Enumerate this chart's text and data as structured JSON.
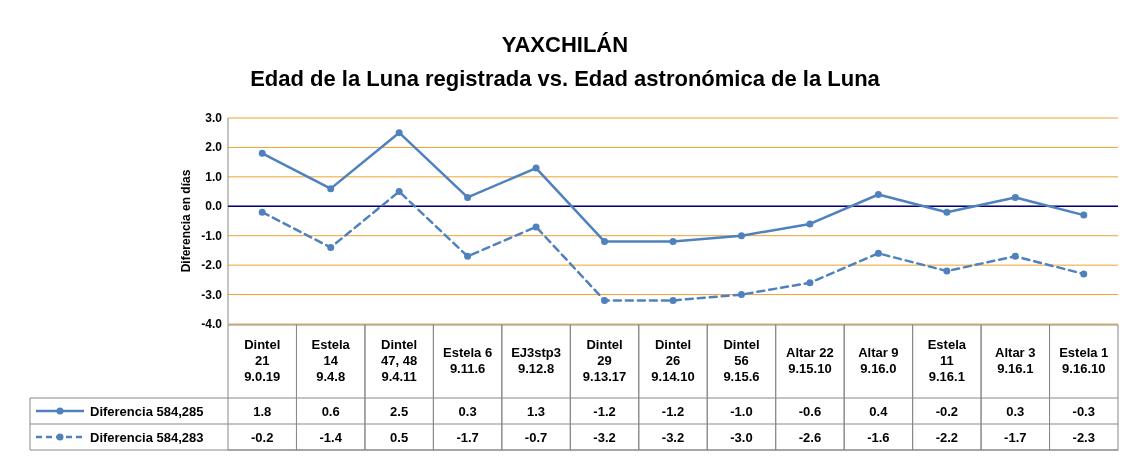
{
  "chart_data": {
    "type": "line",
    "title": "YAXCHILÁN",
    "subtitle": "Edad de la Luna registrada vs. Edad astronómica de la Luna",
    "ylabel": "Diferencia en días",
    "categories": [
      "Dintel\n21\n9.0.19",
      "Estela\n14\n9.4.8",
      "Dintel\n47, 48\n9.4.11",
      "Estela 6\n9.11.6",
      "EJ3stp3\n9.12.8",
      "Dintel\n29\n9.13.17",
      "Dintel\n26\n9.14.10",
      "Dintel\n56\n9.15.6",
      "Altar 22\n9.15.10",
      "Altar 9\n9.16.0",
      "Estela\n11\n9.16.1",
      "Altar 3\n9.16.1",
      "Estela 1\n9.16.10"
    ],
    "series": [
      {
        "name": "Diferencia 584,285",
        "color": "#4f81bd",
        "line_style": "solid",
        "values": [
          1.8,
          0.6,
          2.5,
          0.3,
          1.3,
          -1.2,
          -1.2,
          -1.0,
          -0.6,
          0.4,
          -0.2,
          0.3,
          -0.3
        ],
        "value_labels": [
          "1.8",
          "0.6",
          "2.5",
          "0.3",
          "1.3",
          "-1.2",
          "-1.2",
          "-1.0",
          "-0.6",
          "0.4",
          "-0.2",
          "0.3",
          "-0.3"
        ]
      },
      {
        "name": "Diferencia 584,283",
        "color": "#4f81bd",
        "line_style": "dashed",
        "values": [
          -0.2,
          -1.4,
          0.5,
          -1.7,
          -0.7,
          -3.2,
          -3.2,
          -3.0,
          -2.6,
          -1.6,
          -2.2,
          -1.7,
          -2.3
        ],
        "value_labels": [
          "-0.2",
          "-1.4",
          "0.5",
          "-1.7",
          "-0.7",
          "-3.2",
          "-3.2",
          "-3.0",
          "-2.6",
          "-1.6",
          "-2.2",
          "-1.7",
          "-2.3"
        ]
      }
    ],
    "ylim": [
      -4,
      3
    ],
    "yticks": [
      {
        "value": 3,
        "label": "3.0"
      },
      {
        "value": 2,
        "label": "2.0"
      },
      {
        "value": 1,
        "label": "1.0"
      },
      {
        "value": 0,
        "label": "0.0"
      },
      {
        "value": -1,
        "label": "-1.0"
      },
      {
        "value": -2,
        "label": "-2.0"
      },
      {
        "value": -3,
        "label": "-3.0"
      },
      {
        "value": -4,
        "label": "-4.0"
      }
    ],
    "grid": "y",
    "marker": "circle",
    "legend": "bottom",
    "ref_lines": [
      {
        "axis": "y",
        "value": 0,
        "color": "#000080"
      }
    ]
  }
}
